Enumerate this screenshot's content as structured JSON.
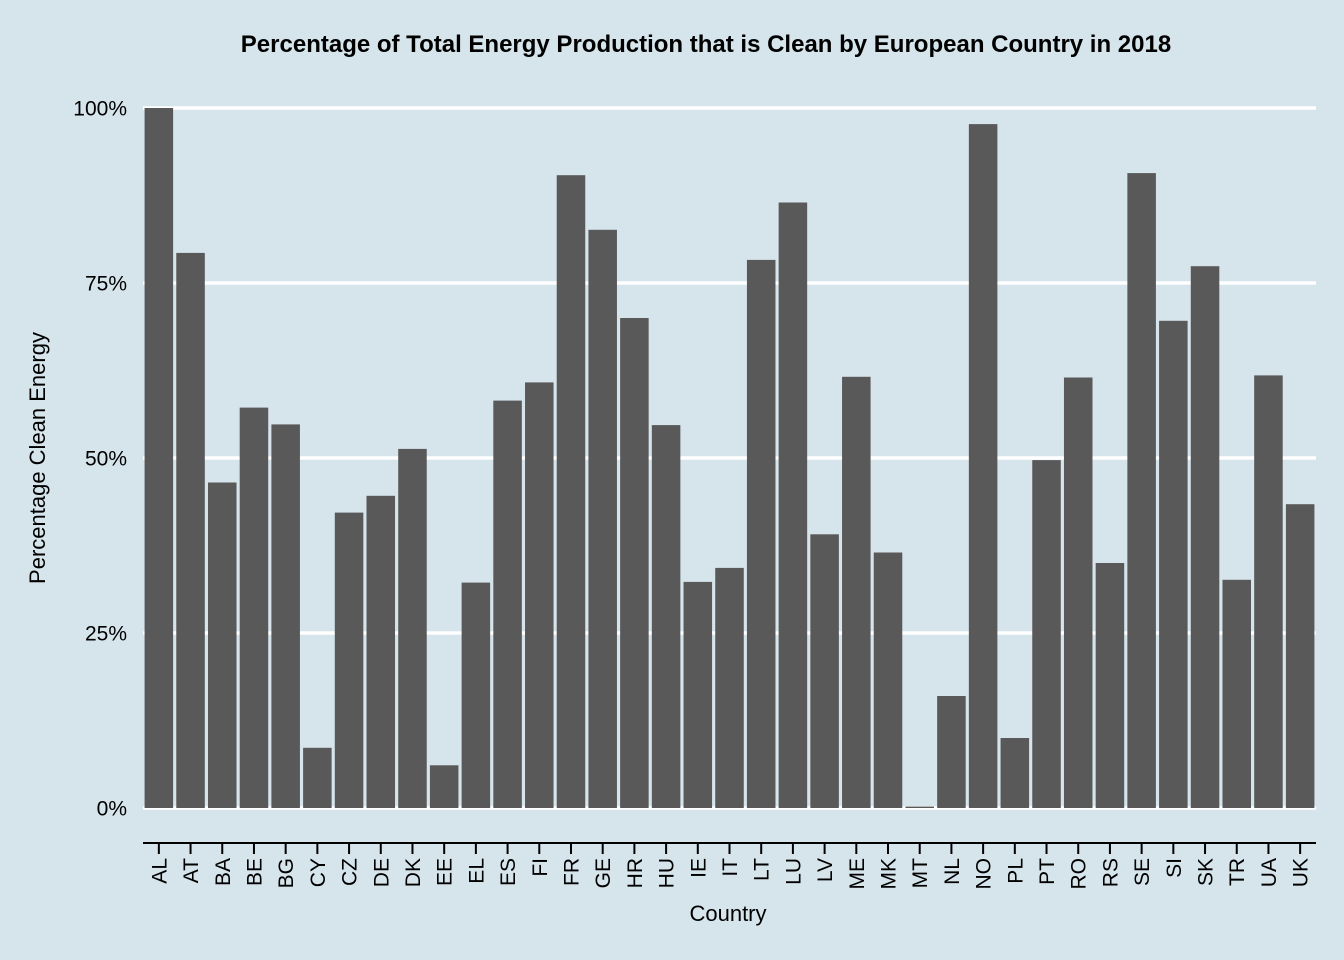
{
  "chart_data": {
    "type": "bar",
    "title": "Percentage of Total Energy Production that is Clean by European Country in 2018",
    "xlabel": "Country",
    "ylabel": "Percentage Clean Energy",
    "ylim": [
      0,
      100
    ],
    "yticks": [
      {
        "value": 0,
        "label": "0%"
      },
      {
        "value": 25,
        "label": "25%"
      },
      {
        "value": 50,
        "label": "50%"
      },
      {
        "value": 75,
        "label": "75%"
      },
      {
        "value": 100,
        "label": "100%"
      }
    ],
    "grid": "horizontal",
    "colors": {
      "background": "#d6e4ec",
      "bar": "#595959",
      "grid": "#ffffff",
      "axis": "#000000"
    },
    "categories": [
      "AL",
      "AT",
      "BA",
      "BE",
      "BG",
      "CY",
      "CZ",
      "DE",
      "DK",
      "EE",
      "EL",
      "ES",
      "FI",
      "FR",
      "GE",
      "HR",
      "HU",
      "IE",
      "IT",
      "LT",
      "LU",
      "LV",
      "ME",
      "MK",
      "MT",
      "NL",
      "NO",
      "PL",
      "PT",
      "RO",
      "RS",
      "SE",
      "SI",
      "SK",
      "TR",
      "UA",
      "UK"
    ],
    "values": [
      100,
      79.3,
      46.5,
      57.2,
      54.8,
      8.6,
      42.2,
      44.6,
      51.3,
      6.1,
      32.2,
      58.2,
      60.8,
      90.4,
      82.6,
      70.0,
      54.7,
      32.3,
      34.3,
      78.3,
      86.5,
      39.1,
      61.6,
      36.5,
      0.2,
      16.0,
      97.7,
      10.0,
      49.7,
      61.5,
      35.0,
      90.7,
      69.6,
      77.4,
      32.6,
      61.8,
      43.4
    ]
  }
}
